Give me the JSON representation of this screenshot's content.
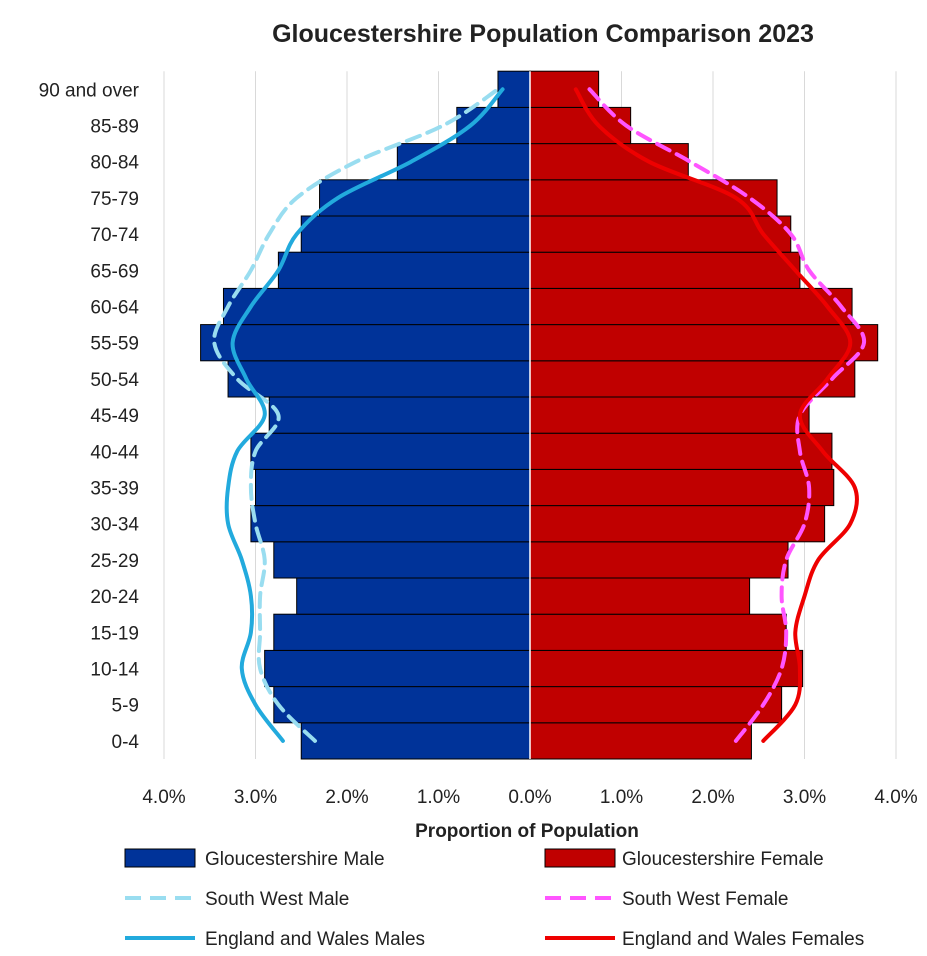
{
  "chart_data": {
    "type": "bar",
    "orientation": "horizontal",
    "title": "Gloucestershire Population  Comparison  2023",
    "xlabel": "Proportion of Population",
    "x_ticks": [
      "4.0%",
      "3.0%",
      "2.0%",
      "1.0%",
      "0.0%",
      "1.0%",
      "2.0%",
      "3.0%",
      "4.0%"
    ],
    "xlim": [
      -4.0,
      4.0
    ],
    "grid": true,
    "legend_position": "bottom",
    "categories": [
      "0-4",
      "5-9",
      "10-14",
      "15-19",
      "20-24",
      "25-29",
      "30-34",
      "35-39",
      "40-44",
      "45-49",
      "50-54",
      "55-59",
      "60-64",
      "65-69",
      "70-74",
      "75-79",
      "80-84",
      "85-89",
      "90 and over"
    ],
    "series": [
      {
        "name": "Gloucestershire Male",
        "kind": "bar",
        "side": "left",
        "color": "#003399",
        "values": [
          2.5,
          2.8,
          2.9,
          2.8,
          2.55,
          2.8,
          3.05,
          3.0,
          3.05,
          2.85,
          3.3,
          3.6,
          3.35,
          2.75,
          2.5,
          2.3,
          1.45,
          0.8,
          0.35
        ]
      },
      {
        "name": "Gloucestershire Female",
        "kind": "bar",
        "side": "right",
        "color": "#C00000",
        "values": [
          2.42,
          2.75,
          2.98,
          2.8,
          2.4,
          2.82,
          3.22,
          3.32,
          3.3,
          3.05,
          3.55,
          3.8,
          3.52,
          2.95,
          2.85,
          2.7,
          1.73,
          1.1,
          0.75
        ]
      },
      {
        "name": "South West Male",
        "kind": "line",
        "style": "dashed",
        "side": "left",
        "color": "#99DDF0",
        "values": [
          2.35,
          2.75,
          2.95,
          2.95,
          2.95,
          2.9,
          3.0,
          3.05,
          3.0,
          2.75,
          3.2,
          3.45,
          3.3,
          3.05,
          2.85,
          2.55,
          1.9,
          0.95,
          0.35
        ]
      },
      {
        "name": "South West Female",
        "kind": "line",
        "style": "dashed",
        "side": "right",
        "color": "#FF55FF",
        "values": [
          2.25,
          2.55,
          2.75,
          2.8,
          2.75,
          2.8,
          3.0,
          3.05,
          2.95,
          2.95,
          3.3,
          3.65,
          3.4,
          3.05,
          2.85,
          2.4,
          1.75,
          1.05,
          0.65
        ]
      },
      {
        "name": "England and Wales Males",
        "kind": "line",
        "style": "solid",
        "side": "left",
        "color": "#22AADD",
        "values": [
          2.7,
          3.0,
          3.15,
          3.05,
          3.05,
          3.15,
          3.3,
          3.3,
          3.2,
          2.9,
          3.1,
          3.25,
          3.05,
          2.75,
          2.55,
          2.1,
          1.3,
          0.65,
          0.3
        ]
      },
      {
        "name": "England and Wales Females",
        "kind": "line",
        "style": "solid",
        "side": "right",
        "color": "#EE0000",
        "values": [
          2.55,
          2.9,
          2.95,
          2.9,
          3.0,
          3.15,
          3.5,
          3.55,
          3.2,
          2.95,
          3.25,
          3.5,
          3.25,
          2.9,
          2.55,
          2.25,
          1.3,
          0.75,
          0.5
        ]
      }
    ]
  }
}
